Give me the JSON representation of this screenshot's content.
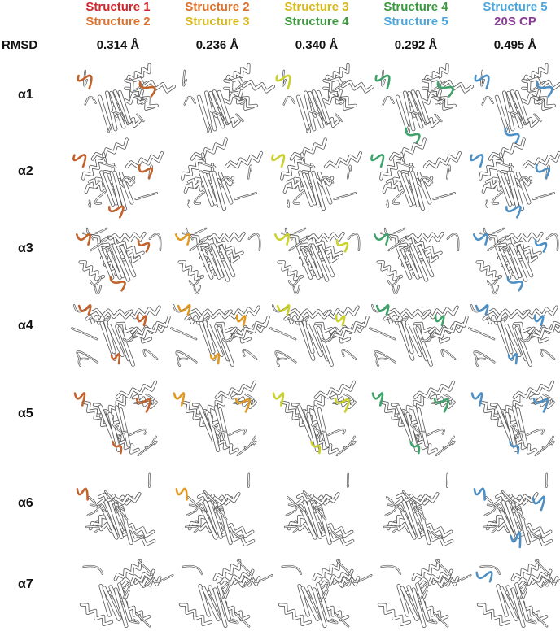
{
  "rmsd_label": "RMSD",
  "colors": {
    "structure1": "#d3262a",
    "structure2": "#e0702a",
    "structure3": "#d9b81a",
    "structure4": "#3a9a3d",
    "structure5": "#4aa6dc",
    "cp20s": "#8a3d96",
    "protein": "#ffffff",
    "outline": "#555555"
  },
  "columns": [
    {
      "line1": "Structure 1",
      "color1": "#d3262a",
      "line2": "Structure 2",
      "color2": "#e0702a",
      "rmsd": "0.314 Å",
      "highlight": "#c2622c"
    },
    {
      "line1": "Structure 2",
      "color1": "#e0702a",
      "line2": "Structure 3",
      "color2": "#d9b81a",
      "rmsd": "0.236 Å",
      "highlight": "#e09a22"
    },
    {
      "line1": "Structure 3",
      "color1": "#d9b81a",
      "line2": "Structure 4",
      "color2": "#3a9a3d",
      "rmsd": "0.340 Å",
      "highlight": "#c9d12a"
    },
    {
      "line1": "Structure 4",
      "color1": "#3a9a3d",
      "line2": "Structure 5",
      "color2": "#4aa6dc",
      "rmsd": "0.292 Å",
      "highlight": "#3fa26a"
    },
    {
      "line1": "Structure 5",
      "color1": "#4aa6dc",
      "line2": "20S CP",
      "color2": "#8a3d96",
      "rmsd": "0.495 Å",
      "highlight": "#4e8fc4"
    }
  ],
  "rows": [
    "α1",
    "α2",
    "α3",
    "α4",
    "α5",
    "α6",
    "α7"
  ]
}
